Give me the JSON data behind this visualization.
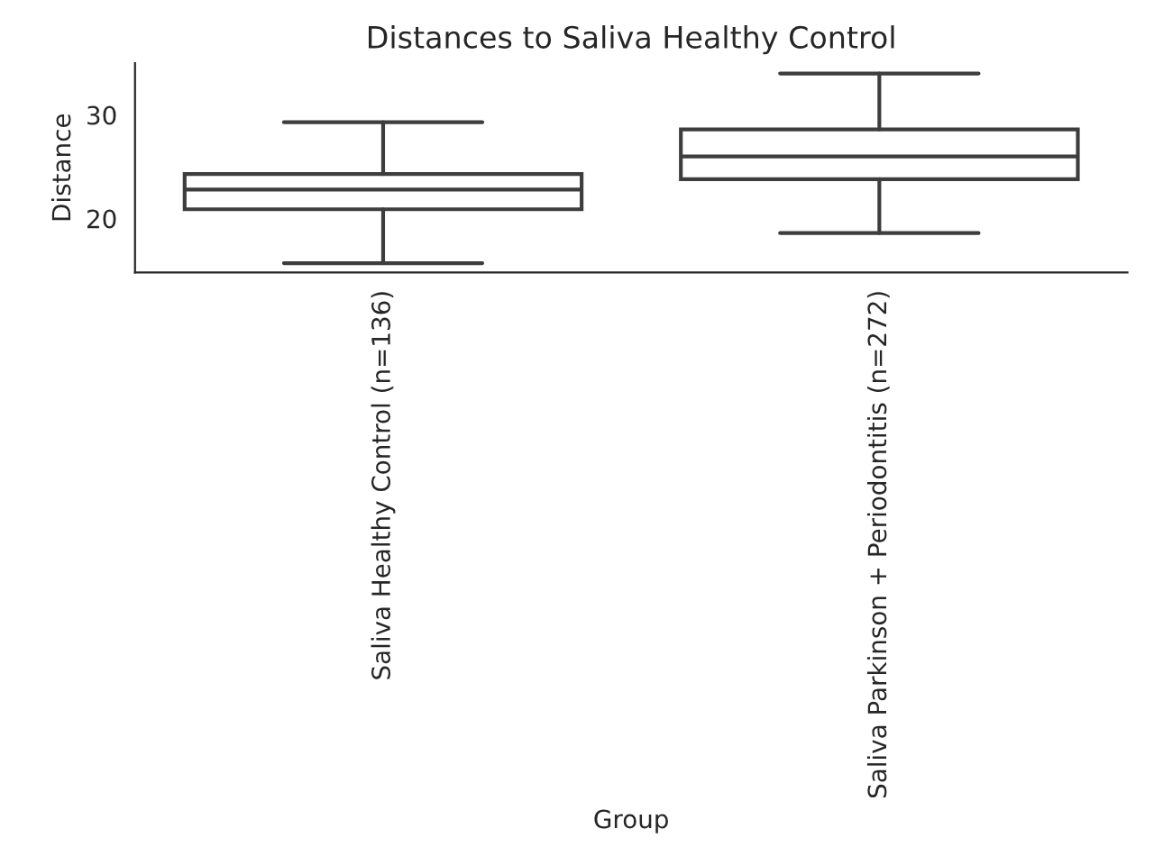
{
  "chart_data": {
    "type": "box",
    "title": "Distances to Saliva Healthy Control",
    "xlabel": "Group",
    "ylabel": "Distance",
    "categories": [
      "Saliva Healthy Control (n=136)",
      "Saliva Parkinson + Periodontitis (n=272)"
    ],
    "boxes": [
      {
        "low": 15.7,
        "q1": 20.9,
        "median": 22.8,
        "q3": 24.3,
        "high": 29.3
      },
      {
        "low": 18.6,
        "q1": 23.8,
        "median": 26.0,
        "q3": 28.6,
        "high": 34.0
      }
    ],
    "color": "#3d3d3d",
    "ylim": [
      14.8,
      35
    ],
    "yticks": [
      20,
      30
    ],
    "grid": false,
    "legend": false
  }
}
